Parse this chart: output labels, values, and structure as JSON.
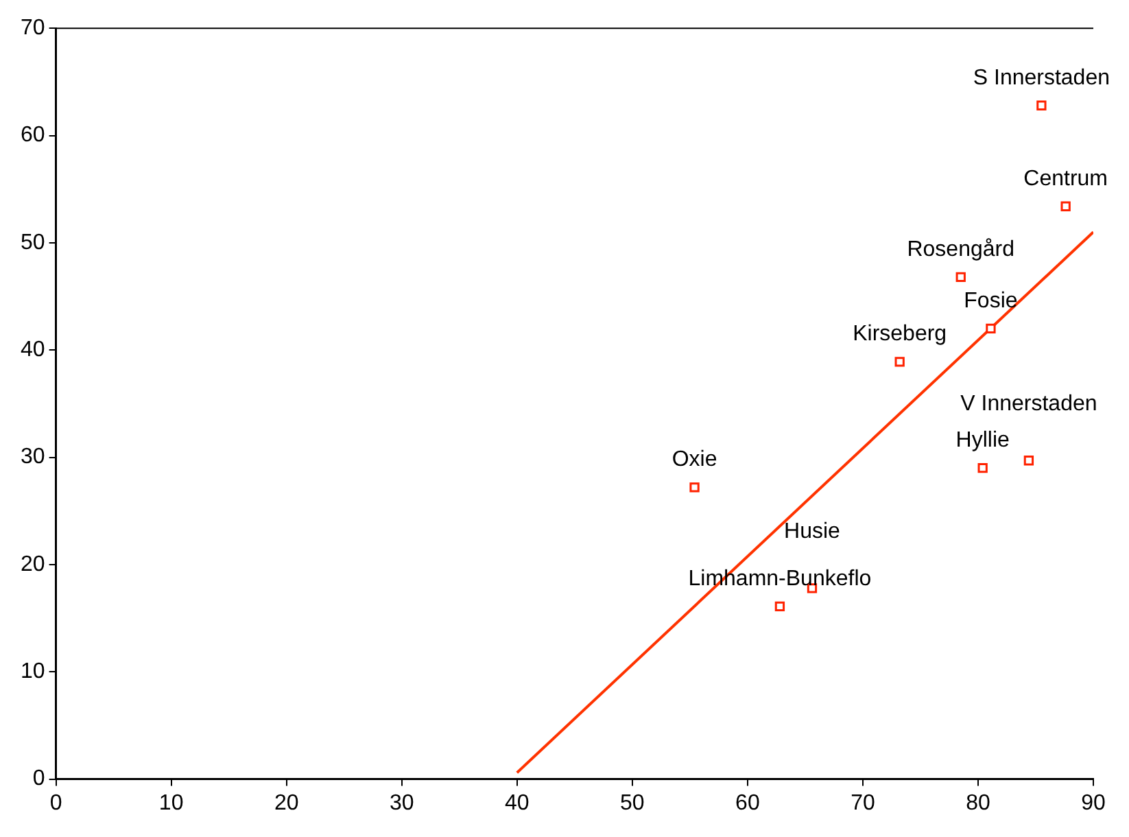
{
  "chart_data": {
    "type": "scatter",
    "x": [
      85.5,
      87.6,
      78.5,
      81.1,
      73.2,
      80.4,
      84.4,
      55.4,
      62.8,
      65.6
    ],
    "series": [
      {
        "color": "#ff2200",
        "marker": "square",
        "values": [
          62.8,
          53.4,
          46.8,
          42.0,
          38.9,
          29.0,
          29.7,
          27.2,
          16.1,
          17.8
        ]
      },
      {
        "type": "line",
        "color": "#ff3300",
        "x": [
          40,
          90
        ],
        "values": [
          0.6,
          51
        ],
        "marker": "none",
        "line_style": "solid"
      }
    ],
    "annotations": [
      {
        "text": "S Innerstaden",
        "x": 85.5,
        "y": 62.8
      },
      {
        "text": "Centrum",
        "x": 87.6,
        "y": 53.4
      },
      {
        "text": "Rosengård",
        "x": 78.5,
        "y": 46.8
      },
      {
        "text": "Fosie",
        "x": 81.1,
        "y": 42.0
      },
      {
        "text": "Kirseberg",
        "x": 73.2,
        "y": 38.9
      },
      {
        "text": "Hyllie",
        "x": 80.4,
        "y": 29.0
      },
      {
        "text": "V Innerstaden",
        "x": 84.4,
        "y": 29.7
      },
      {
        "text": "Oxie",
        "x": 55.4,
        "y": 27.2
      },
      {
        "text": "Limhamn-Bunkeflo",
        "x": 62.8,
        "y": 16.1
      },
      {
        "text": "Husie",
        "x": 65.6,
        "y": 17.8
      }
    ],
    "xlim": [
      0,
      90
    ],
    "xticks": [
      0,
      10,
      20,
      30,
      40,
      50,
      60,
      70,
      80,
      90
    ],
    "ylim": [
      0,
      70
    ],
    "yticks": [
      0,
      10,
      20,
      30,
      40,
      50,
      60,
      70
    ],
    "grid": false,
    "legend": false
  }
}
